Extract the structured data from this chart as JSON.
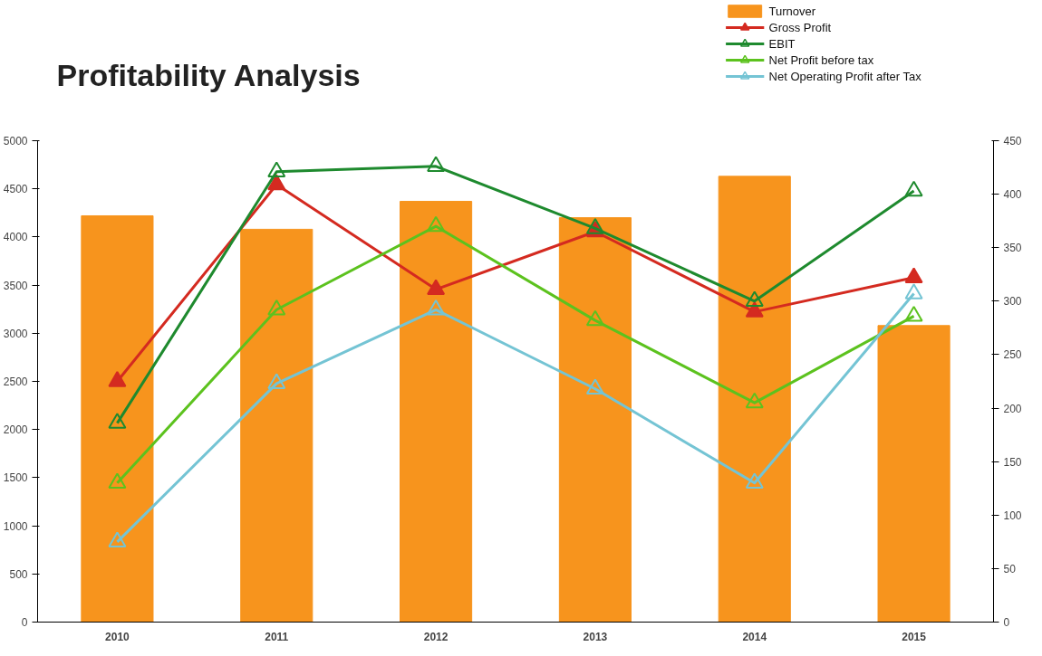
{
  "chart_data": {
    "type": "bar",
    "title": "Profitability Analysis",
    "categories": [
      "2010",
      "2011",
      "2012",
      "2013",
      "2014",
      "2015"
    ],
    "series": [
      {
        "name": "Turnover",
        "color": "#f7941d",
        "values": [
          4220,
          4080,
          4370,
          4200,
          4630,
          3080
        ]
      },
      {
        "name": "Gross Profit",
        "type": "line",
        "axis": "y2",
        "color": "#d42a20",
        "marker": "triangle",
        "values": [
          225,
          409,
          311,
          365,
          290,
          322
        ]
      },
      {
        "name": "EBIT",
        "type": "line",
        "axis": "y2",
        "color": "#1e8a2e",
        "marker": "triangle",
        "values": [
          186,
          421,
          426,
          368,
          300,
          403
        ]
      },
      {
        "name": "Net Profit before tax",
        "type": "line",
        "axis": "y2",
        "color": "#5cc21e",
        "marker": "triangle",
        "values": [
          130,
          292,
          370,
          282,
          205,
          286
        ]
      },
      {
        "name": "Net Operating Profit after Tax",
        "type": "line",
        "axis": "y2",
        "color": "#74c4d4",
        "marker": "triangle",
        "values": [
          75,
          223,
          292,
          218,
          130,
          307
        ]
      }
    ],
    "ylim": [
      0,
      5000
    ],
    "yticks": [
      0,
      500,
      1000,
      1500,
      2000,
      2500,
      3000,
      3500,
      4000,
      4500,
      5000
    ],
    "y2lim": [
      0,
      450
    ],
    "y2ticks": [
      0,
      50,
      100,
      150,
      200,
      250,
      300,
      350,
      400,
      450
    ],
    "grid": false,
    "legend": "top right",
    "line_style": "solid"
  }
}
